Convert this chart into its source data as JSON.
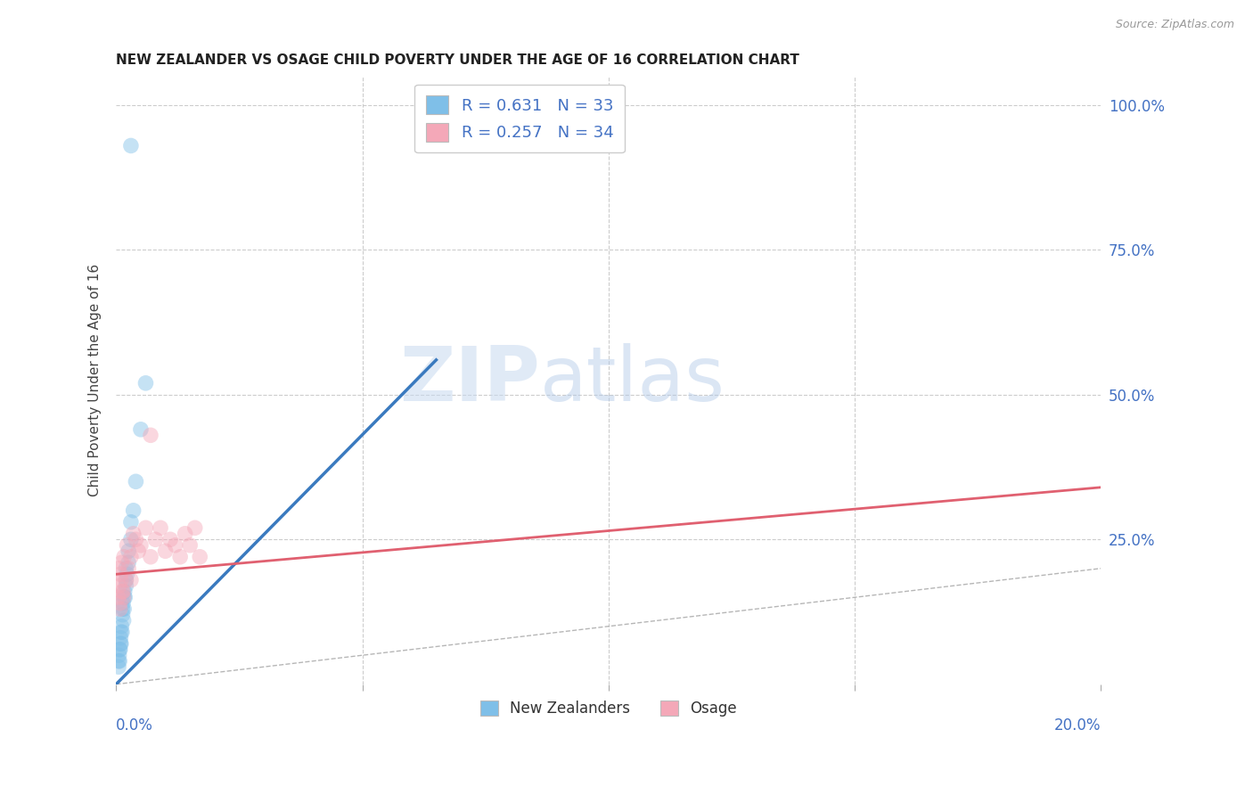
{
  "title": "NEW ZEALANDER VS OSAGE CHILD POVERTY UNDER THE AGE OF 16 CORRELATION CHART",
  "source": "Source: ZipAtlas.com",
  "ylabel": "Child Poverty Under the Age of 16",
  "watermark_zip": "ZIP",
  "watermark_atlas": "atlas",
  "legend_blue_label": "R = 0.631   N = 33",
  "legend_pink_label": "R = 0.257   N = 34",
  "legend_bottom_blue": "New Zealanders",
  "legend_bottom_pink": "Osage",
  "blue_scatter_color": "#7fbfe8",
  "pink_scatter_color": "#f4a8b8",
  "blue_line_color": "#3a7abf",
  "pink_line_color": "#e06070",
  "ref_line_color": "#aaaaaa",
  "title_color": "#222222",
  "axis_label_color": "#4472c4",
  "grid_color": "#cccccc",
  "background_color": "#ffffff",
  "marker_size": 160,
  "marker_alpha": 0.45,
  "xlim": [
    0.0,
    0.2
  ],
  "ylim": [
    0.0,
    1.05
  ],
  "yticks": [
    0.25,
    0.5,
    0.75,
    1.0
  ],
  "ytick_labels": [
    "25.0%",
    "50.0%",
    "75.0%",
    "100.0%"
  ],
  "nz_x": [
    0.0005,
    0.0008,
    0.001,
    0.0012,
    0.0015,
    0.0006,
    0.0009,
    0.0011,
    0.0013,
    0.0016,
    0.0018,
    0.002,
    0.0022,
    0.0005,
    0.0007,
    0.001,
    0.0014,
    0.0017,
    0.002,
    0.0025,
    0.003,
    0.0035,
    0.0007,
    0.0009,
    0.0013,
    0.0016,
    0.002,
    0.0025,
    0.003,
    0.004,
    0.005,
    0.006,
    0.003
  ],
  "nz_y": [
    0.04,
    0.06,
    0.07,
    0.09,
    0.11,
    0.05,
    0.08,
    0.1,
    0.12,
    0.13,
    0.15,
    0.17,
    0.19,
    0.03,
    0.06,
    0.09,
    0.14,
    0.16,
    0.18,
    0.21,
    0.25,
    0.3,
    0.04,
    0.07,
    0.13,
    0.15,
    0.2,
    0.23,
    0.28,
    0.35,
    0.44,
    0.52,
    0.93
  ],
  "osage_x": [
    0.0004,
    0.0006,
    0.0008,
    0.001,
    0.0012,
    0.0005,
    0.0009,
    0.0011,
    0.0014,
    0.0016,
    0.002,
    0.0022,
    0.0025,
    0.003,
    0.0035,
    0.004,
    0.0045,
    0.005,
    0.006,
    0.007,
    0.008,
    0.009,
    0.01,
    0.011,
    0.012,
    0.013,
    0.014,
    0.015,
    0.016,
    0.017,
    0.0008,
    0.0015,
    0.003,
    0.007
  ],
  "osage_y": [
    0.15,
    0.17,
    0.14,
    0.18,
    0.16,
    0.2,
    0.19,
    0.21,
    0.16,
    0.22,
    0.18,
    0.24,
    0.2,
    0.22,
    0.26,
    0.25,
    0.23,
    0.24,
    0.27,
    0.22,
    0.25,
    0.27,
    0.23,
    0.25,
    0.24,
    0.22,
    0.26,
    0.24,
    0.27,
    0.22,
    0.13,
    0.15,
    0.18,
    0.43
  ],
  "nz_line_x": [
    0.0,
    0.065
  ],
  "nz_line_y": [
    0.0,
    0.56
  ],
  "osage_line_x": [
    0.0,
    0.2
  ],
  "osage_line_y": [
    0.19,
    0.34
  ]
}
